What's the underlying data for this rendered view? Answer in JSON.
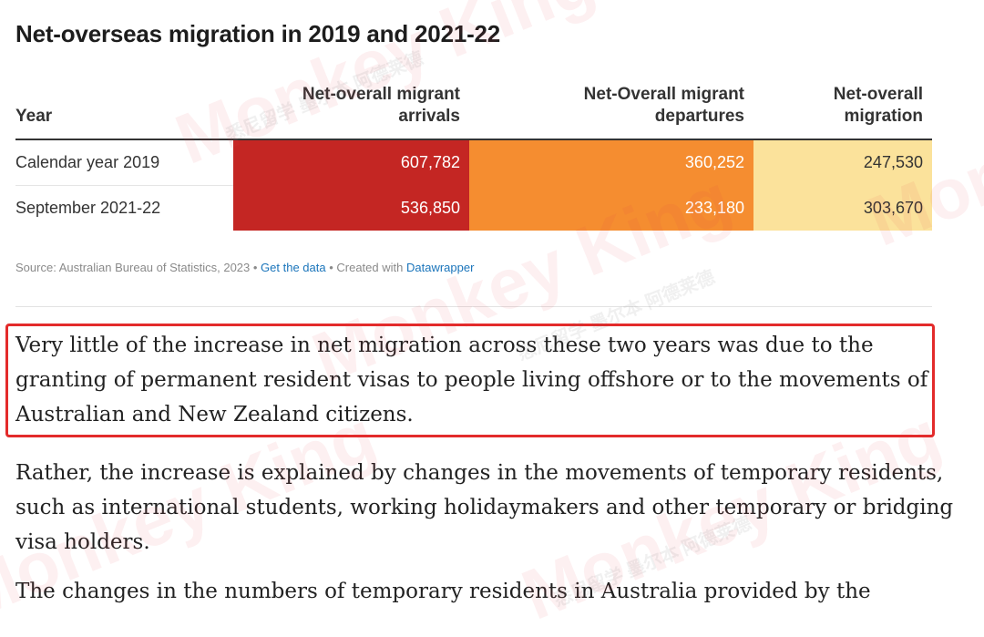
{
  "title": "Net-overseas migration in 2019 and 2021-22",
  "table": {
    "headers": {
      "year": "Year",
      "arrivals_line1": "Net-overall migrant",
      "arrivals_line2": "arrivals",
      "departures_line1": "Net-Overall migrant",
      "departures_line2": "departures",
      "net": "Net-overall migration"
    },
    "rows": [
      {
        "year": "Calendar year 2019",
        "arrivals": "607,782",
        "departures": "360,252",
        "net": "247,530"
      },
      {
        "year": "September 2021-22",
        "arrivals": "536,850",
        "departures": "233,180",
        "net": "303,670"
      }
    ],
    "colors": {
      "arrivals": "#c42623",
      "departures": "#f58d30",
      "net": "#fbe29b"
    }
  },
  "source": {
    "prefix": "Source: Australian Bureau of Statistics, 2023 • ",
    "get_data": "Get the data",
    "created_with": " • Created with ",
    "datawrapper": "Datawrapper"
  },
  "paragraphs": {
    "p1": "Very little of the increase in net migration across these two years was due to the granting of permanent resident visas to people living offshore or to the movements of Australian and New Zealand citizens.",
    "p2": "Rather, the increase is explained by changes in the movements of temporary residents, such as international students, working holidaymakers and other temporary or bridging visa holders.",
    "p3": "The changes in the numbers of temporary residents in Australia provided by the"
  },
  "watermarks": {
    "brand": "Monkey King",
    "cn": "悉尼留学 墨尔本 阿德莱德"
  },
  "highlight_color": "#e32b2b"
}
